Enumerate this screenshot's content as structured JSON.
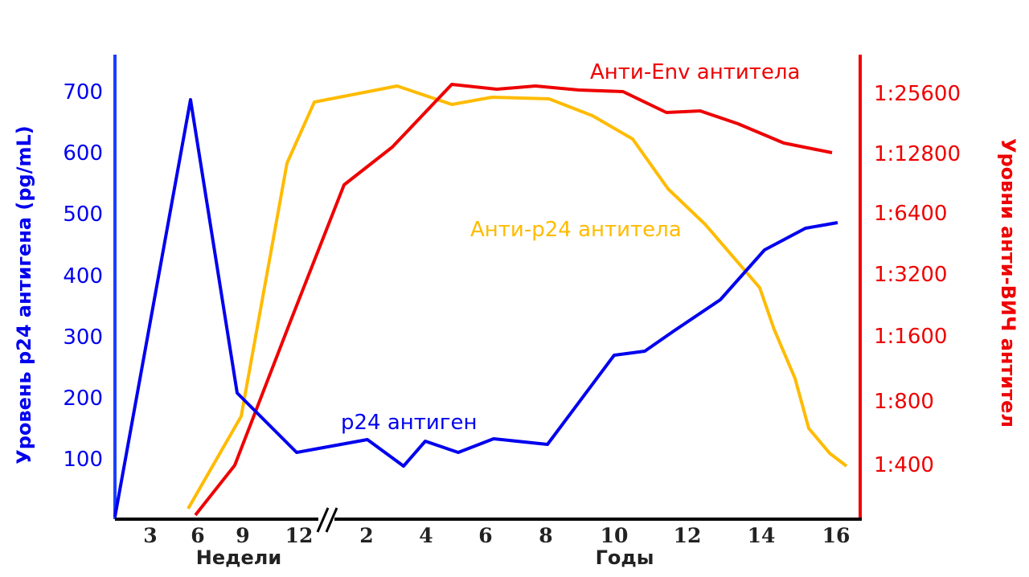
{
  "chart_data": {
    "type": "line",
    "y_left": {
      "label": "Уровень p24 антигена (pg/mL)",
      "ticks": [
        100,
        200,
        300,
        400,
        500,
        600,
        700
      ],
      "range": [
        0,
        750
      ]
    },
    "y_right": {
      "label": "Уровни анти-ВИЧ антител",
      "ticks": [
        "1:400",
        "1:800",
        "1:1600",
        "1:3200",
        "1:6400",
        "1:12800",
        "1:25600"
      ],
      "scale": "log2 titer"
    },
    "x_axis": {
      "weeks_label": "Недели",
      "weeks_ticks": [
        "3",
        "6",
        "9",
        "12"
      ],
      "years_label": "Годы",
      "years_ticks": [
        "2",
        "4",
        "6",
        "8",
        "10",
        "12",
        "14",
        "16"
      ],
      "break_symbol": "//"
    },
    "series": [
      {
        "name": "p24 антиген",
        "axis": "left",
        "color": "#0000ee",
        "points": [
          {
            "x": "0w",
            "y": 0
          },
          {
            "x": "5.5w",
            "y": 685
          },
          {
            "x": "9.5w",
            "y": 205
          },
          {
            "x": "12w",
            "y": 107
          },
          {
            "x": "2y",
            "y": 128
          },
          {
            "x": "3y",
            "y": 85
          },
          {
            "x": "3.5y",
            "y": 127
          },
          {
            "x": "4.2y",
            "y": 108
          },
          {
            "x": "5y",
            "y": 130
          },
          {
            "x": "7y",
            "y": 122
          },
          {
            "x": "10y",
            "y": 265
          },
          {
            "x": "11y",
            "y": 272
          },
          {
            "x": "12y",
            "y": 310
          },
          {
            "x": "13y",
            "y": 357
          },
          {
            "x": "14y",
            "y": 440
          },
          {
            "x": "15y",
            "y": 474
          },
          {
            "x": "16y",
            "y": 483
          }
        ]
      },
      {
        "name": "Анти-p24 антитела",
        "axis": "right",
        "color": "#ffbb00",
        "points": [
          {
            "x": "5w",
            "titer_log2": -1.4
          },
          {
            "x": "9w",
            "titer_log2": 0.5
          },
          {
            "x": "11.5w",
            "titer_log2": 4.9
          },
          {
            "x": "12.5w",
            "titer_log2": 6.6
          },
          {
            "x": "3y",
            "titer_log2": 7.1
          },
          {
            "x": "5y",
            "titer_log2": 6.7
          },
          {
            "x": "6y",
            "titer_log2": 6.8
          },
          {
            "x": "8y",
            "titer_log2": 6.8
          },
          {
            "x": "10y",
            "titer_log2": 6.4
          },
          {
            "x": "11y",
            "titer_log2": 5.8
          },
          {
            "x": "12y",
            "titer_log2": 4.7
          },
          {
            "x": "13y",
            "titer_log2": 3.9
          },
          {
            "x": "14.5y",
            "titer_log2": 2.8
          },
          {
            "x": "15y",
            "titer_log2": 2.2
          },
          {
            "x": "15.5y",
            "titer_log2": 1.4
          },
          {
            "x": "16y",
            "titer_log2": 0.6
          },
          {
            "x": "16.5y",
            "titer_log2": 0.2
          },
          {
            "x": "17y",
            "titer_log2": -0.1
          }
        ]
      },
      {
        "name": "Анти-Env антитела",
        "axis": "right",
        "color": "#ee0000",
        "points": [
          {
            "x": "6w",
            "titer_log2": -1.6
          },
          {
            "x": "9.5w",
            "titer_log2": -0.1
          },
          {
            "x": "1y",
            "titer_log2": 4.5
          },
          {
            "x": "2y",
            "titer_log2": 5.1
          },
          {
            "x": "4y",
            "titer_log2": 6.2
          },
          {
            "x": "5y",
            "titer_log2": 6.1
          },
          {
            "x": "6y",
            "titer_log2": 6.2
          },
          {
            "x": "8y",
            "titer_log2": 6.1
          },
          {
            "x": "10y",
            "titer_log2": 6.0
          },
          {
            "x": "11y",
            "titer_log2": 5.6
          },
          {
            "x": "12y",
            "titer_log2": 5.7
          },
          {
            "x": "13y",
            "titer_log2": 5.4
          },
          {
            "x": "14y",
            "titer_log2": 5.2
          },
          {
            "x": "15y",
            "titer_log2": 5.0
          },
          {
            "x": "16y",
            "titer_log2": 4.8
          }
        ]
      }
    ]
  }
}
